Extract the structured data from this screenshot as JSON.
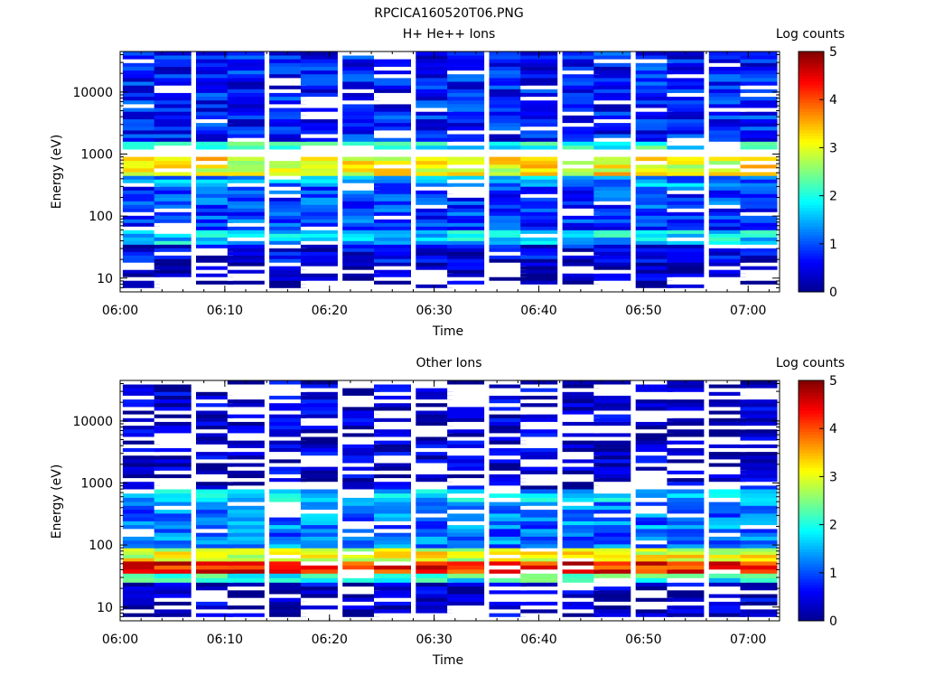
{
  "figure": {
    "title": "RPCICA160520T06.PNG"
  },
  "colors": {
    "colormap": [
      "#00008f",
      "#0000ff",
      "#0080ff",
      "#00ffff",
      "#80ff80",
      "#ffff00",
      "#ff8000",
      "#ff0000",
      "#800000"
    ],
    "empty_bin": "#ffffff",
    "axes": "#000000"
  },
  "chart_data": [
    {
      "type": "heatmap",
      "title": "H+ He++ Ions",
      "xlabel": "Time",
      "ylabel": "Energy (eV)",
      "x_ticks": [
        "06:00",
        "06:10",
        "06:20",
        "06:30",
        "06:40",
        "06:50",
        "07:00"
      ],
      "xlim": [
        "06:00",
        "07:03"
      ],
      "y_scale": "log",
      "y_ticks": [
        "10",
        "100",
        "1000",
        "10000"
      ],
      "ylim": [
        6,
        45000
      ],
      "colorbar": {
        "label": "Log counts",
        "range": [
          0,
          5
        ],
        "ticks": [
          "0",
          "1",
          "2",
          "3",
          "4",
          "5"
        ]
      },
      "time_bins": [
        "06:02",
        "06:05",
        "06:09",
        "06:12",
        "06:16",
        "06:19",
        "06:23",
        "06:26",
        "06:30",
        "06:33",
        "06:37",
        "06:40",
        "06:44",
        "06:47",
        "06:51",
        "06:54",
        "06:58",
        "07:01"
      ],
      "energy_bands_eV": [
        {
          "range": [
            7,
            18
          ],
          "log_counts": 0.2,
          "note": "sparse, many empty bins"
        },
        {
          "range": [
            18,
            35
          ],
          "log_counts": 0.5
        },
        {
          "range": [
            35,
            60
          ],
          "log_counts": 1.7
        },
        {
          "range": [
            60,
            300
          ],
          "log_counts": 0.9
        },
        {
          "range": [
            300,
            450
          ],
          "log_counts": 1.3
        },
        {
          "range": [
            450,
            900
          ],
          "log_counts": 3.1,
          "note": "peak ~4 near 06:05–06:14"
        },
        {
          "range": [
            1200,
            1600
          ],
          "log_counts": 2.0
        },
        {
          "range": [
            1600,
            45000
          ],
          "log_counts": 0.7
        }
      ]
    },
    {
      "type": "heatmap",
      "title": "Other Ions",
      "xlabel": "Time",
      "ylabel": "Energy (eV)",
      "x_ticks": [
        "06:00",
        "06:10",
        "06:20",
        "06:30",
        "06:40",
        "06:50",
        "07:00"
      ],
      "xlim": [
        "06:00",
        "07:03"
      ],
      "y_scale": "log",
      "y_ticks": [
        "10",
        "100",
        "1000",
        "10000"
      ],
      "ylim": [
        6,
        45000
      ],
      "colorbar": {
        "label": "Log counts",
        "range": [
          0,
          5
        ],
        "ticks": [
          "0",
          "1",
          "2",
          "3",
          "4",
          "5"
        ]
      },
      "time_bins": [
        "06:02",
        "06:05",
        "06:09",
        "06:12",
        "06:16",
        "06:19",
        "06:23",
        "06:26",
        "06:30",
        "06:33",
        "06:37",
        "06:40",
        "06:44",
        "06:47",
        "06:51",
        "06:54",
        "06:58",
        "07:01"
      ],
      "energy_bands_eV": [
        {
          "range": [
            7,
            25
          ],
          "log_counts": 0.3,
          "note": "sparse, many empty bins"
        },
        {
          "range": [
            25,
            35
          ],
          "log_counts": 2.0
        },
        {
          "range": [
            35,
            55
          ],
          "log_counts": 4.3,
          "note": "strongest band across whole interval"
        },
        {
          "range": [
            55,
            90
          ],
          "log_counts": 3.0
        },
        {
          "range": [
            90,
            500
          ],
          "log_counts": 1.2,
          "note": "~2 before 06:15, decreasing later"
        },
        {
          "range": [
            500,
            800
          ],
          "log_counts": 1.6,
          "note": "before 06:25"
        },
        {
          "range": [
            800,
            45000
          ],
          "log_counts": 0.3,
          "note": "mostly empty, scattered low counts"
        }
      ]
    }
  ]
}
